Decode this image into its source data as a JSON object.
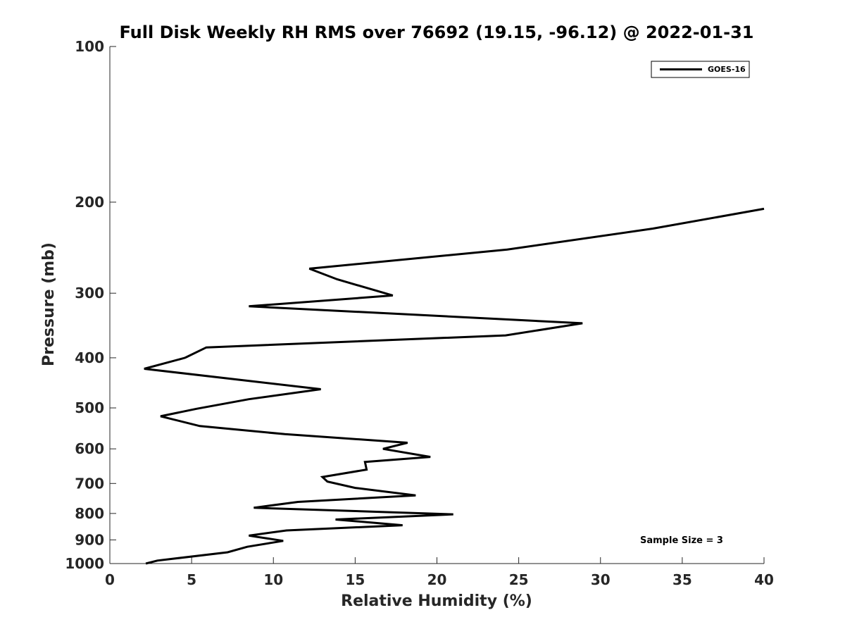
{
  "chart_data": {
    "type": "line",
    "title": "Full Disk Weekly RH RMS over 76692 (19.15, -96.12) @ 2022-01-31",
    "xlabel": "Relative Humidity (%)",
    "ylabel": "Pressure (mb)",
    "xlim": [
      0,
      40
    ],
    "ylim": [
      100,
      1000
    ],
    "yscale": "log",
    "y_inverted": true,
    "x_ticks": [
      "0",
      "5",
      "10",
      "15",
      "20",
      "25",
      "30",
      "35",
      "40"
    ],
    "y_ticks": [
      "100",
      "200",
      "300",
      "400",
      "500",
      "600",
      "700",
      "800",
      "900",
      "1000"
    ],
    "grid": false,
    "legend": {
      "position": "top-right",
      "entries": [
        "GOES-16"
      ]
    },
    "annotation": "Sample Size = 3",
    "series": [
      {
        "name": "GOES-16",
        "color": "#000000",
        "points": [
          [
            40.0,
            206
          ],
          [
            33.2,
            225
          ],
          [
            24.3,
            247
          ],
          [
            12.2,
            269
          ],
          [
            13.9,
            282
          ],
          [
            17.3,
            303
          ],
          [
            8.5,
            318
          ],
          [
            28.9,
            343
          ],
          [
            24.2,
            362
          ],
          [
            5.9,
            382
          ],
          [
            4.6,
            400
          ],
          [
            2.1,
            420
          ],
          [
            12.9,
            460
          ],
          [
            8.5,
            481
          ],
          [
            5.3,
            502
          ],
          [
            3.1,
            519
          ],
          [
            5.5,
            542
          ],
          [
            10.7,
            562
          ],
          [
            18.2,
            584
          ],
          [
            16.7,
            600
          ],
          [
            19.6,
            622
          ],
          [
            15.6,
            636
          ],
          [
            15.7,
            658
          ],
          [
            13.0,
            680
          ],
          [
            13.3,
            694
          ],
          [
            15.0,
            714
          ],
          [
            18.7,
            738
          ],
          [
            11.5,
            760
          ],
          [
            8.8,
            780
          ],
          [
            21.0,
            803
          ],
          [
            13.8,
            822
          ],
          [
            17.9,
            843
          ],
          [
            10.8,
            863
          ],
          [
            8.5,
            883
          ],
          [
            10.6,
            904
          ],
          [
            8.4,
            928
          ],
          [
            7.2,
            951
          ],
          [
            2.9,
            987
          ],
          [
            2.2,
            1000
          ]
        ]
      }
    ]
  }
}
